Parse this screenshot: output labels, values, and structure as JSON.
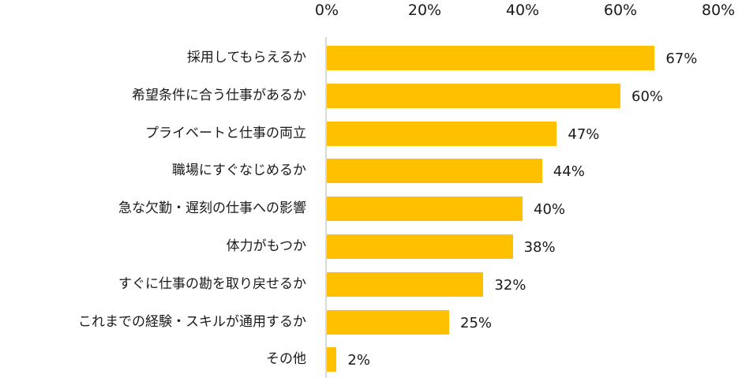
{
  "chart_data": {
    "type": "bar",
    "orientation": "horizontal",
    "title": "",
    "xlabel": "",
    "ylabel": "",
    "xlim": [
      0,
      80
    ],
    "x_ticks": [
      "0%",
      "20%",
      "40%",
      "60%",
      "80%"
    ],
    "tick_position": "top",
    "grid": false,
    "legend": null,
    "categories": [
      "採用してもらえるか",
      "希望条件に合う仕事があるか",
      "プライベートと仕事の両立",
      "職場にすぐなじめるか",
      "急な欠勤・遅刻の仕事への影響",
      "体力がもつか",
      "すぐに仕事の勘を取り戻せるか",
      "これまでの経験・スキルが通用するか",
      "その他"
    ],
    "values": [
      67,
      60,
      47,
      44,
      40,
      38,
      32,
      25,
      2
    ],
    "value_labels": [
      "67%",
      "60%",
      "47%",
      "44%",
      "40%",
      "38%",
      "32%",
      "25%",
      "2%"
    ],
    "unit": "%",
    "bar_color": "#FFC000"
  }
}
